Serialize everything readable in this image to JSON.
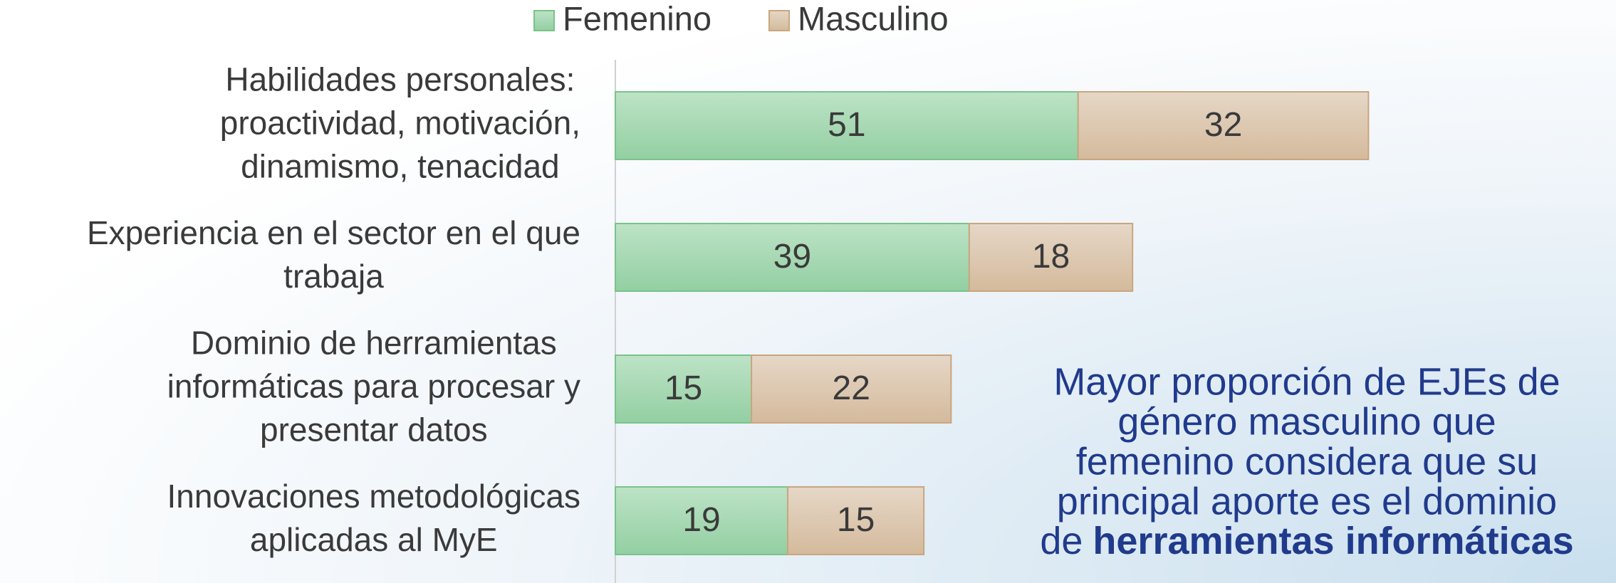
{
  "chart_data": {
    "type": "stacked-bar-horizontal",
    "categories": [
      [
        "Habilidades personales:",
        "proactividad, motivación,",
        "dinamismo, tenacidad"
      ],
      [
        "Experiencia en el sector en el que",
        "trabaja"
      ],
      [
        "Dominio de herramientas",
        "informáticas para procesar y",
        "presentar datos"
      ],
      [
        "Innovaciones metodológicas",
        "aplicadas al MyE"
      ]
    ],
    "series": [
      {
        "name": "Femenino",
        "color": "#9fd4ac",
        "values": [
          51,
          39,
          15,
          19
        ]
      },
      {
        "name": "Masculino",
        "color": "#dcc6ad",
        "values": [
          32,
          18,
          22,
          15
        ]
      }
    ],
    "legend": "top",
    "annotation": {
      "lines": [
        "Mayor proporción de EJEs de",
        "género masculino que",
        "femenino considera que su",
        "principal aporte es el dominio",
        "de"
      ],
      "emphasis": "herramientas informáticas",
      "color": "#203a8c"
    }
  }
}
